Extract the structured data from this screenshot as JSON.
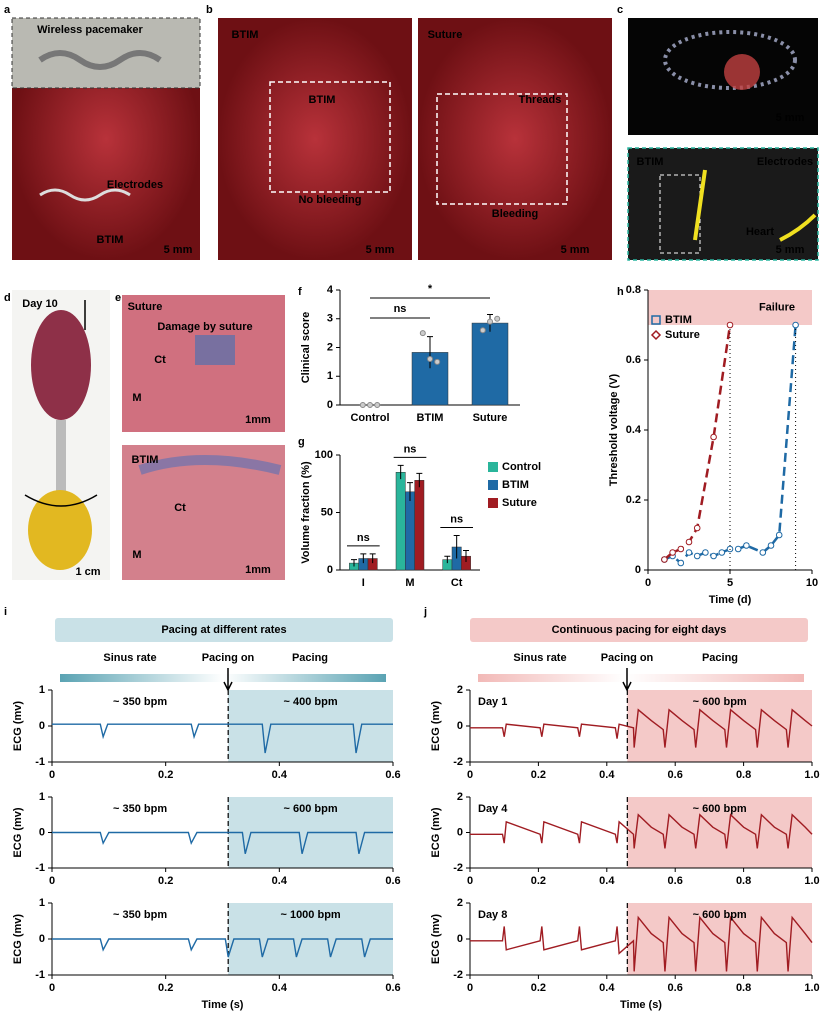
{
  "panels": {
    "a": {
      "letter": "a",
      "texts": [
        "Wireless pacemaker",
        "Electrodes",
        "BTIM",
        "5 mm"
      ]
    },
    "b": {
      "letter": "b",
      "texts": [
        "BTIM",
        "BTIM",
        "No bleeding",
        "5 mm",
        "Suture",
        "Threads",
        "Bleeding",
        "5 mm"
      ]
    },
    "c": {
      "letter": "c",
      "texts": [
        "5 mm",
        "BTIM",
        "Electrodes",
        "Heart",
        "5 mm"
      ]
    },
    "d": {
      "letter": "d",
      "texts": [
        "Day 10",
        "1 cm"
      ]
    },
    "e": {
      "letter": "e",
      "texts": [
        "Suture",
        "Damage by suture",
        "Ct",
        "M",
        "1mm",
        "BTIM",
        "Ct",
        "M",
        "1mm"
      ]
    },
    "f": {
      "letter": "f"
    },
    "g": {
      "letter": "g"
    },
    "h": {
      "letter": "h"
    },
    "i": {
      "letter": "i",
      "header": "Pacing at different rates",
      "labels": [
        "Sinus rate",
        "Pacing on",
        "Pacing"
      ]
    },
    "j": {
      "letter": "j",
      "header": "Continuous pacing for eight days",
      "labels": [
        "Sinus rate",
        "Pacing on",
        "Pacing"
      ]
    }
  },
  "chart_data": [
    {
      "type": "bar",
      "ylabel": "Clinical score",
      "categories": [
        "Control",
        "BTIM",
        "Suture"
      ],
      "values": [
        0,
        1.83,
        2.85
      ],
      "errors": [
        0,
        0.55,
        0.3
      ],
      "points": [
        [
          0,
          0,
          0
        ],
        [
          2.5,
          1.6,
          1.5
        ],
        [
          2.6,
          2.9,
          3.0
        ]
      ],
      "color": "#1f6aa5",
      "ylim": [
        0,
        4
      ],
      "yticks": [
        0,
        1,
        2,
        3,
        4
      ],
      "annotations": [
        "ns",
        "*"
      ]
    },
    {
      "type": "bar",
      "ylabel": "Volume fraction (%)",
      "categories": [
        "I",
        "M",
        "Ct"
      ],
      "series": [
        {
          "name": "Control",
          "color": "#2ab59b",
          "values": [
            6,
            85,
            9
          ],
          "errors": [
            3,
            6,
            3
          ]
        },
        {
          "name": "BTIM",
          "color": "#1f6aa5",
          "values": [
            10,
            68,
            20
          ],
          "errors": [
            4,
            8,
            10
          ]
        },
        {
          "name": "Suture",
          "color": "#a01c22",
          "values": [
            10,
            78,
            12
          ],
          "errors": [
            4,
            6,
            5
          ]
        }
      ],
      "ylim": [
        0,
        100
      ],
      "yticks": [
        0,
        50,
        100
      ],
      "annotations": [
        "ns",
        "ns",
        "ns"
      ]
    },
    {
      "type": "line",
      "xlabel": "Time (d)",
      "ylabel": "Threshold voltage (V)",
      "series": [
        {
          "name": "BTIM",
          "color": "#1f6aa5",
          "marker": "square",
          "x": [
            1,
            1.5,
            2,
            2.5,
            3,
            3.5,
            4,
            4.5,
            5,
            5.5,
            6,
            7,
            7.5,
            8,
            9
          ],
          "values": [
            0.03,
            0.04,
            0.02,
            0.05,
            0.04,
            0.05,
            0.04,
            0.05,
            0.06,
            0.06,
            0.07,
            0.05,
            0.07,
            0.1,
            0.7
          ]
        },
        {
          "name": "Suture",
          "color": "#a01c22",
          "marker": "diamond",
          "x": [
            1,
            1.5,
            2,
            2.5,
            3,
            4,
            5
          ],
          "values": [
            0.03,
            0.05,
            0.06,
            0.08,
            0.12,
            0.38,
            0.7
          ]
        }
      ],
      "band": {
        "y": [
          0.7,
          0.8
        ],
        "label": "Failure",
        "color": "#f4c9c8"
      },
      "xlim": [
        0,
        10
      ],
      "xticks": [
        0,
        5,
        10
      ],
      "ylim": [
        0,
        0.8
      ],
      "yticks": [
        0,
        0.2,
        0.4,
        0.6,
        0.8
      ]
    },
    {
      "type": "ecg",
      "ylabel": "ECG (mv)",
      "annotations": [
        "~ 350 bpm",
        "~ 400 bpm"
      ],
      "pacing_on": 0.31,
      "shade": "#c9e1e7",
      "series": [
        {
          "color": "#1f6aa5",
          "x": [
            0,
            0.085,
            0.09,
            0.098,
            0.245,
            0.25,
            0.258,
            0.31,
            0.37,
            0.375,
            0.385,
            0.53,
            0.535,
            0.545,
            0.6
          ],
          "values": [
            0.05,
            0.05,
            -0.3,
            0.05,
            0.05,
            -0.3,
            0.05,
            0.05,
            0.05,
            -0.75,
            0.05,
            0.05,
            -0.75,
            0.05,
            0.05
          ]
        }
      ],
      "xlim": [
        0,
        0.6
      ],
      "xticks": [
        0,
        0.2,
        0.4,
        0.6
      ],
      "ylim": [
        -1,
        1
      ],
      "yticks": [
        -1,
        0,
        1
      ]
    },
    {
      "type": "ecg",
      "ylabel": "ECG (mv)",
      "annotations": [
        "~ 350 bpm",
        "~ 600 bpm"
      ],
      "pacing_on": 0.31,
      "shade": "#c9e1e7",
      "series": [
        {
          "color": "#1f6aa5",
          "x": [
            0,
            0.085,
            0.09,
            0.1,
            0.24,
            0.245,
            0.255,
            0.335,
            0.34,
            0.35,
            0.435,
            0.44,
            0.45,
            0.535,
            0.54,
            0.55,
            0.6
          ],
          "values": [
            0,
            0,
            -0.3,
            0,
            0,
            -0.3,
            0,
            0,
            -0.6,
            0,
            0,
            -0.6,
            0,
            0,
            -0.6,
            0,
            0
          ]
        }
      ],
      "xlim": [
        0,
        0.6
      ],
      "xticks": [
        0,
        0.2,
        0.4,
        0.6
      ],
      "ylim": [
        -1,
        1
      ],
      "yticks": [
        -1,
        0,
        1
      ]
    },
    {
      "type": "ecg",
      "ylabel": "ECG (mv)",
      "xlabel": "Time (s)",
      "annotations": [
        "~ 350 bpm",
        "~ 1000 bpm"
      ],
      "pacing_on": 0.31,
      "shade": "#c9e1e7",
      "series": [
        {
          "color": "#1f6aa5",
          "x": [
            0,
            0.085,
            0.09,
            0.1,
            0.24,
            0.245,
            0.255,
            0.305,
            0.31,
            0.32,
            0.365,
            0.37,
            0.38,
            0.425,
            0.43,
            0.44,
            0.485,
            0.49,
            0.5,
            0.545,
            0.55,
            0.56,
            0.6
          ],
          "values": [
            0,
            0,
            -0.3,
            0,
            0,
            -0.3,
            0,
            0,
            -0.5,
            0,
            0,
            -0.5,
            0,
            0,
            -0.5,
            0,
            0,
            -0.5,
            0,
            0,
            -0.5,
            0,
            0
          ]
        }
      ],
      "xlim": [
        0,
        0.6
      ],
      "xticks": [
        0,
        0.2,
        0.4,
        0.6
      ],
      "ylim": [
        -1,
        1
      ],
      "yticks": [
        -1,
        0,
        1
      ]
    },
    {
      "type": "ecg",
      "ylabel": "ECG (mv)",
      "label": "Day 1",
      "annotations": [
        "~ 600 bpm"
      ],
      "pacing_on": 0.46,
      "shade": "#f4c9c8",
      "series": [
        {
          "color": "#a01c22",
          "x": [
            0,
            0.095,
            0.1,
            0.106,
            0.205,
            0.21,
            0.216,
            0.315,
            0.32,
            0.326,
            0.425,
            0.43,
            0.436,
            0.478,
            0.48,
            0.492,
            0.53,
            0.565,
            0.57,
            0.582,
            0.62,
            0.655,
            0.66,
            0.672,
            0.71,
            0.745,
            0.75,
            0.762,
            0.8,
            0.835,
            0.84,
            0.852,
            0.89,
            0.925,
            0.93,
            0.942,
            0.98,
            1.0
          ],
          "values": [
            -0.1,
            -0.1,
            -0.6,
            0.1,
            -0.1,
            -0.6,
            0.1,
            -0.1,
            -0.6,
            0.1,
            -0.1,
            -0.7,
            0.1,
            -0.1,
            -1.2,
            0.9,
            0.3,
            -0.2,
            -1.2,
            0.9,
            0.3,
            -0.2,
            -1.2,
            0.9,
            0.3,
            -0.2,
            -1.2,
            0.9,
            0.3,
            -0.2,
            -1.2,
            0.9,
            0.3,
            -0.2,
            -1.2,
            0.9,
            0.3,
            0
          ]
        }
      ],
      "xlim": [
        0,
        1
      ],
      "xticks": [
        0,
        0.2,
        0.4,
        0.6,
        0.8,
        {
          "value": 1,
          "label": "1.0"
        }
      ],
      "ylim": [
        -2,
        2
      ],
      "yticks": [
        -2,
        0,
        2
      ]
    },
    {
      "type": "ecg",
      "ylabel": "ECG (mv)",
      "label": "Day 4",
      "annotations": [
        "~ 600 bpm"
      ],
      "pacing_on": 0.46,
      "shade": "#f4c9c8",
      "series": [
        {
          "color": "#a01c22",
          "x": [
            0,
            0.095,
            0.1,
            0.106,
            0.205,
            0.21,
            0.216,
            0.315,
            0.32,
            0.326,
            0.425,
            0.43,
            0.436,
            0.478,
            0.48,
            0.492,
            0.53,
            0.565,
            0.57,
            0.582,
            0.62,
            0.655,
            0.66,
            0.672,
            0.71,
            0.745,
            0.75,
            0.762,
            0.8,
            0.835,
            0.84,
            0.852,
            0.89,
            0.925,
            0.93,
            0.942,
            0.98,
            1.0
          ],
          "values": [
            -0.1,
            -0.1,
            -0.6,
            0.6,
            -0.1,
            -0.6,
            0.6,
            -0.1,
            -0.6,
            0.6,
            -0.1,
            -0.6,
            0.6,
            -0.1,
            -0.9,
            1.0,
            0.3,
            -0.1,
            -0.9,
            1.0,
            0.3,
            -0.1,
            -0.9,
            1.0,
            0.3,
            -0.1,
            -0.9,
            1.0,
            0.3,
            -0.1,
            -0.9,
            1.0,
            0.3,
            -0.1,
            -0.9,
            1.0,
            0.3,
            -0.1
          ]
        }
      ],
      "xlim": [
        0,
        1
      ],
      "xticks": [
        0,
        0.2,
        0.4,
        0.6,
        0.8,
        {
          "value": 1,
          "label": "1.0"
        }
      ],
      "ylim": [
        -2,
        2
      ],
      "yticks": [
        -2,
        0,
        2
      ]
    },
    {
      "type": "ecg",
      "ylabel": "ECG (mv)",
      "xlabel": "Time (s)",
      "label": "Day 8",
      "annotations": [
        "~ 600 bpm"
      ],
      "pacing_on": 0.46,
      "shade": "#f4c9c8",
      "series": [
        {
          "color": "#a01c22",
          "x": [
            0,
            0.095,
            0.1,
            0.106,
            0.205,
            0.21,
            0.216,
            0.315,
            0.32,
            0.326,
            0.425,
            0.43,
            0.436,
            0.478,
            0.48,
            0.492,
            0.53,
            0.565,
            0.57,
            0.582,
            0.62,
            0.655,
            0.66,
            0.672,
            0.71,
            0.745,
            0.75,
            0.762,
            0.8,
            0.835,
            0.84,
            0.852,
            0.89,
            0.925,
            0.93,
            0.942,
            0.98,
            1.0
          ],
          "values": [
            -0.1,
            -0.1,
            0.7,
            -0.6,
            -0.1,
            0.7,
            -0.6,
            -0.1,
            0.7,
            -0.6,
            -0.1,
            0.7,
            -0.8,
            -0.1,
            -1.8,
            1.2,
            0.3,
            -0.2,
            -1.8,
            1.2,
            0.3,
            -0.2,
            -1.8,
            1.2,
            0.3,
            -0.2,
            -1.8,
            1.2,
            0.3,
            -0.2,
            -1.8,
            1.2,
            0.3,
            -0.2,
            -1.8,
            1.2,
            0.3,
            -0.2
          ]
        }
      ],
      "xlim": [
        0,
        1
      ],
      "xticks": [
        0,
        0.2,
        0.4,
        0.6,
        0.8,
        {
          "value": 1,
          "label": "1.0"
        }
      ],
      "ylim": [
        -2,
        2
      ],
      "yticks": [
        -2,
        0,
        2
      ]
    }
  ]
}
